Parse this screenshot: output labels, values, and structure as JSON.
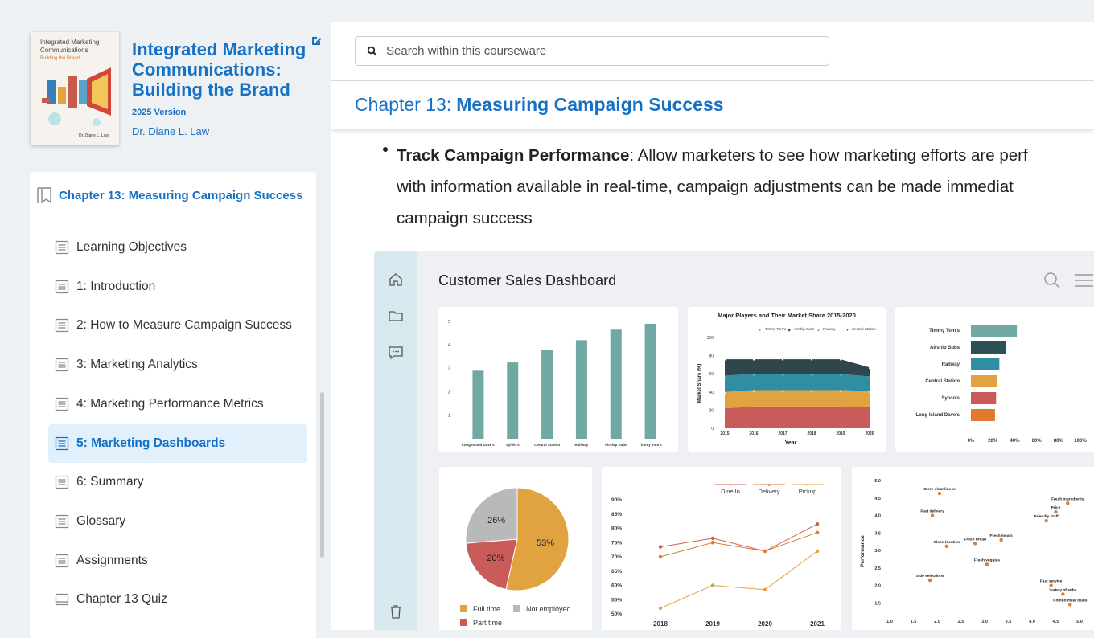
{
  "book": {
    "cover_title": "Integrated Marketing Communications",
    "cover_subtitle": "Building the Brand",
    "cover_author": "Dr. Diane L. Law",
    "title": "Integrated Marketing Communications: Building the Brand",
    "version": "2025 Version",
    "author": "Dr. Diane L. Law"
  },
  "toc": {
    "header": "Chapter 13: Measuring Campaign Success",
    "items": [
      {
        "label": "Learning Objectives",
        "icon": "page-icon"
      },
      {
        "label": "1: Introduction",
        "icon": "page-icon"
      },
      {
        "label": "2: How to Measure Campaign Success",
        "icon": "page-icon"
      },
      {
        "label": "3: Marketing Analytics",
        "icon": "page-icon"
      },
      {
        "label": "4: Marketing Performance Metrics",
        "icon": "page-icon"
      },
      {
        "label": "5: Marketing Dashboards",
        "icon": "page-icon",
        "active": true
      },
      {
        "label": "6: Summary",
        "icon": "page-icon"
      },
      {
        "label": "Glossary",
        "icon": "page-icon"
      },
      {
        "label": "Assignments",
        "icon": "page-icon"
      },
      {
        "label": "Chapter 13 Quiz",
        "icon": "quiz-icon"
      }
    ]
  },
  "search": {
    "placeholder": "Search within this courseware"
  },
  "chapter_bar": {
    "prefix": "Chapter 13:",
    "title": "Measuring Campaign Success"
  },
  "content": {
    "bullet_bold": "Track Campaign Performance",
    "bullet_text": ": Allow marketers to see how marketing efforts are perf",
    "line2": "with information available in real-time, campaign adjustments can be made immediat",
    "line3": "campaign success"
  },
  "dashboard": {
    "title": "Customer Sales Dashboard"
  },
  "colors": {
    "accent": "#1670c4",
    "teal": "#70a8a4",
    "orange": "#e0a33f",
    "red": "#c95b5b",
    "gray": "#b9b9b9"
  },
  "chart_data": [
    {
      "type": "bar",
      "categories": [
        "Long Island Dave's",
        "Sylvio's",
        "Central Station",
        "Railway",
        "Airship Subs",
        "Timmy Tom's"
      ],
      "values": [
        2.9,
        3.25,
        3.8,
        4.2,
        4.65,
        4.9
      ],
      "ylim": [
        0,
        5
      ],
      "yticks": [
        "1",
        "2",
        "3",
        "4",
        "5"
      ]
    },
    {
      "type": "area",
      "title": "Major Players and Their Market Share 2015-2020",
      "xlabel": "Year",
      "ylabel": "Market Share (%)",
      "x": [
        "2015",
        "2016",
        "2017",
        "2018",
        "2019",
        "2020"
      ],
      "ylim": [
        0,
        100
      ],
      "yticks": [
        "0",
        "20",
        "40",
        "60",
        "80",
        "100"
      ],
      "series": [
        {
          "name": "Central Station",
          "values": [
            22,
            24,
            24,
            24,
            24,
            23
          ]
        },
        {
          "name": "Railway",
          "values": [
            18,
            18,
            18,
            18,
            18,
            18
          ]
        },
        {
          "name": "Airship Subs",
          "values": [
            18,
            18,
            18,
            18,
            18,
            16
          ]
        },
        {
          "name": "Timmy Tom's",
          "values": [
            18,
            16,
            16,
            16,
            16,
            10
          ]
        }
      ],
      "legend": [
        "Timmy Tom's",
        "Airship Subs",
        "Railway",
        "Central Station"
      ]
    },
    {
      "type": "bar",
      "orientation": "horizontal",
      "categories": [
        "Timmy Tom's",
        "Airship Subs",
        "Railway",
        "Central Station",
        "Sylvio's",
        "Long Island Dave's"
      ],
      "values": [
        42,
        32,
        26,
        24,
        23,
        22
      ],
      "xticks": [
        "0%",
        "20%",
        "40%",
        "60%",
        "80%",
        "100%"
      ]
    },
    {
      "type": "pie",
      "labels": [
        "Full time",
        "Part time",
        "Not employed"
      ],
      "values": [
        53,
        20,
        26
      ],
      "value_labels": [
        "53%",
        "20%",
        "26%"
      ]
    },
    {
      "type": "line",
      "x": [
        "2018",
        "2019",
        "2020",
        "2021"
      ],
      "yticks": [
        "50%",
        "55%",
        "60%",
        "65%",
        "70%",
        "75%",
        "80%",
        "85%",
        "90%"
      ],
      "ylim": [
        50,
        90
      ],
      "series": [
        {
          "name": "Dine In",
          "values": [
            73.5,
            76.5,
            72,
            81.5
          ]
        },
        {
          "name": "Delivery",
          "values": [
            70,
            75,
            72,
            78.5
          ]
        },
        {
          "name": "Pickup",
          "values": [
            52,
            60,
            58.5,
            72
          ]
        }
      ]
    },
    {
      "type": "scatter",
      "ylabel": "Performance",
      "xticks": [
        "1.0",
        "1.5",
        "2.0",
        "2.5",
        "3.0",
        "3.5",
        "4.0",
        "4.5",
        "5.0"
      ],
      "yticks": [
        "1.5",
        "2.0",
        "2.5",
        "3.0",
        "3.5",
        "4.0",
        "4.5",
        "5.0"
      ],
      "xlim": [
        1.0,
        5.0
      ],
      "ylim": [
        1.3,
        5.0
      ],
      "points": [
        {
          "label": "Store cleanliness",
          "x": 2.05,
          "y": 4.63
        },
        {
          "label": "Fast delivery",
          "x": 1.9,
          "y": 4.0
        },
        {
          "label": "Close location",
          "x": 2.2,
          "y": 3.12
        },
        {
          "label": "Fresh bread",
          "x": 2.8,
          "y": 3.2
        },
        {
          "label": "Fresh meats",
          "x": 3.35,
          "y": 3.3
        },
        {
          "label": "Fresh veggies",
          "x": 3.05,
          "y": 2.6
        },
        {
          "label": "Side selections",
          "x": 1.85,
          "y": 2.15
        },
        {
          "label": "Fresh ingredients",
          "x": 4.75,
          "y": 4.35
        },
        {
          "label": "Price",
          "x": 4.5,
          "y": 4.1
        },
        {
          "label": "Friendly staff",
          "x": 4.3,
          "y": 3.85
        },
        {
          "label": "Fast service",
          "x": 4.4,
          "y": 2.0
        },
        {
          "label": "Variety of subs",
          "x": 4.65,
          "y": 1.75
        },
        {
          "label": "Combo meal deals",
          "x": 4.8,
          "y": 1.45
        }
      ]
    }
  ]
}
